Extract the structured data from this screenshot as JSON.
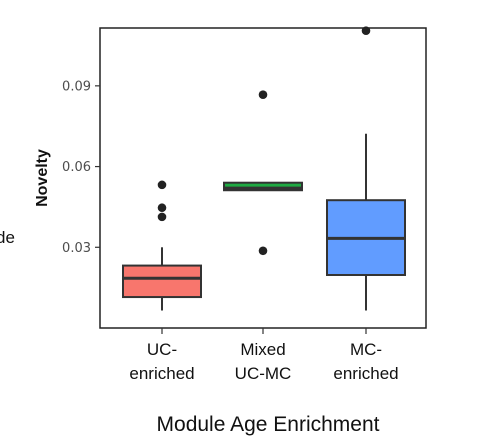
{
  "chart_data": {
    "type": "box",
    "title": "",
    "xlabel": "Module Age Enrichment",
    "ylabel": "Novelty",
    "ylim": [
      0.0,
      0.1115
    ],
    "yticks": [
      0.03,
      0.06,
      0.09
    ],
    "ytick_labels": [
      "0.03",
      "0.06",
      "0.09"
    ],
    "grid": false,
    "edge_text": "de",
    "categories": [
      {
        "label_lines": [
          "UC-",
          "enriched"
        ],
        "color": "#f8766d"
      },
      {
        "label_lines": [
          "Mixed",
          "UC-MC"
        ],
        "color": "#1eaa42"
      },
      {
        "label_lines": [
          "MC-",
          "enriched"
        ],
        "color": "#619cff"
      }
    ],
    "boxes": [
      {
        "whisker_low": 0.0065,
        "q1": 0.0115,
        "median": 0.0185,
        "q3": 0.0232,
        "whisker_high": 0.03,
        "outliers": [
          0.0413,
          0.0447,
          0.0532
        ]
      },
      {
        "whisker_low": 0.0512,
        "q1": 0.0512,
        "median": 0.052,
        "q3": 0.054,
        "whisker_high": 0.054,
        "outliers": [
          0.0287,
          0.0867
        ]
      },
      {
        "whisker_low": 0.0065,
        "q1": 0.0197,
        "median": 0.0333,
        "q3": 0.0475,
        "whisker_high": 0.0722,
        "outliers": [
          0.1105
        ]
      }
    ]
  }
}
